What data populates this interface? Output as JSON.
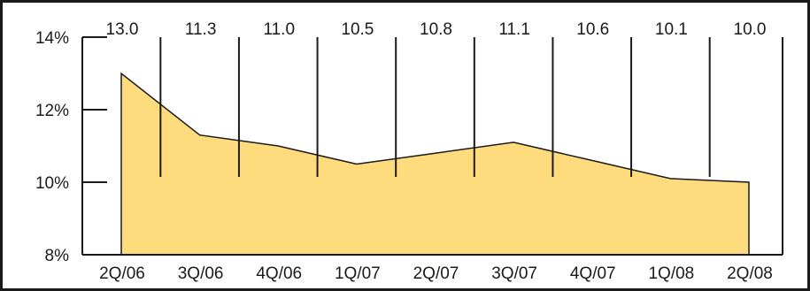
{
  "chart_data": {
    "type": "area",
    "title": "",
    "xlabel": "",
    "ylabel": "",
    "categories": [
      "2Q/06",
      "3Q/06",
      "4Q/06",
      "1Q/07",
      "2Q/07",
      "3Q/07",
      "4Q/07",
      "1Q/08",
      "2Q/08"
    ],
    "series": [
      {
        "values": [
          13.0,
          11.3,
          11.0,
          10.5,
          10.8,
          11.1,
          10.6,
          10.1,
          10.0
        ]
      }
    ],
    "top_labels": [
      "13.0",
      "11.3",
      "11.0",
      "10.5",
      "10.8",
      "11.1",
      "10.6",
      "10.1",
      "10.0"
    ],
    "y_ticks": [
      "8%",
      "10%",
      "12%",
      "14%"
    ],
    "y_tick_values": [
      8,
      10,
      12,
      14
    ],
    "ylim": [
      8,
      14
    ],
    "grid": false,
    "legend": "none",
    "colors": {
      "fill": "#fedc7e",
      "stroke": "#1a1a1a",
      "frame": "#1a1a1a",
      "background": "#ffffff"
    }
  }
}
